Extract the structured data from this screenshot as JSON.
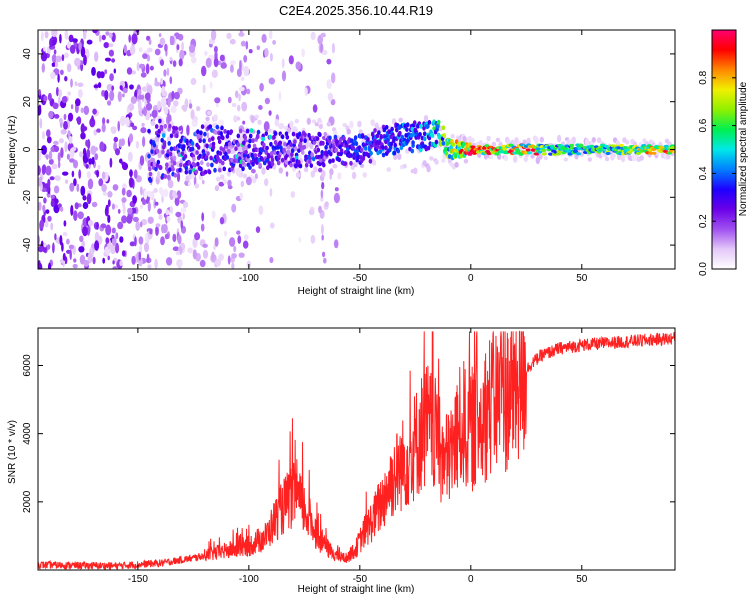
{
  "title": "C2E4.2025.356.10.44.R19",
  "chart_data": [
    {
      "type": "heatmap",
      "name": "spectrogram",
      "xlabel": "Height of straight line (km)",
      "ylabel": "Frequency (Hz)",
      "xlim": [
        -195,
        92
      ],
      "ylim": [
        -50,
        50
      ],
      "xticks": [
        -150,
        -100,
        -50,
        0,
        50
      ],
      "xtick_labels": [
        "-150",
        "-100",
        "-50",
        "0",
        "50"
      ],
      "yticks": [
        -40,
        -20,
        0,
        20,
        40
      ],
      "ytick_labels": [
        "-40",
        "-20",
        "0",
        "20",
        "40"
      ],
      "colorbar": {
        "label": "Normalized spectral amplitude",
        "range": [
          0,
          1
        ],
        "ticks": [
          0.0,
          0.2,
          0.4,
          0.6,
          0.8
        ],
        "tick_labels": [
          "0.0",
          "0.2",
          "0.4",
          "0.6",
          "0.8"
        ],
        "colormap": [
          "#ffffff",
          "#e4c8f8",
          "#a050f0",
          "#6a00e8",
          "#1e00ff",
          "#0080ff",
          "#00e8e8",
          "#00f050",
          "#90f000",
          "#f0f000",
          "#ff8800",
          "#ff0000",
          "#ff0070"
        ]
      },
      "description_points": [
        {
          "x": -190,
          "band_halfwidth_hz": 50,
          "amplitude": 0.15
        },
        {
          "x": -140,
          "band_halfwidth_hz": 12,
          "amplitude": 0.2
        },
        {
          "x": -100,
          "band_halfwidth_hz": 8,
          "amplitude": 0.25
        },
        {
          "x": -50,
          "band_halfwidth_hz": 6,
          "amplitude": 0.35
        },
        {
          "x": -20,
          "band_halfwidth_hz": 6,
          "amplitude": 0.45
        },
        {
          "x": 0,
          "band_halfwidth_hz": 2,
          "amplitude": 0.9
        },
        {
          "x": 50,
          "band_halfwidth_hz": 2,
          "amplitude": 0.55
        },
        {
          "x": 90,
          "band_halfwidth_hz": 1.5,
          "amplitude": 0.85
        }
      ]
    },
    {
      "type": "line",
      "name": "snr",
      "xlabel": "Height of straight line (km)",
      "ylabel": "SNR (10 * v/v)",
      "xlim": [
        -195,
        92
      ],
      "ylim": [
        0,
        7100
      ],
      "xticks": [
        -150,
        -100,
        -50,
        0,
        50
      ],
      "xtick_labels": [
        "-150",
        "-100",
        "-50",
        "0",
        "50"
      ],
      "yticks": [
        2000,
        4000,
        6000
      ],
      "ytick_labels": [
        "2000",
        "4000",
        "6000"
      ],
      "color": "#ff2020",
      "series": [
        {
          "name": "SNR",
          "x": [
            -195,
            -160,
            -140,
            -125,
            -115,
            -100,
            -92,
            -88,
            -84,
            -80,
            -76,
            -72,
            -68,
            -64,
            -60,
            -56,
            -52,
            -48,
            -44,
            -40,
            -36,
            -32,
            -28,
            -24,
            -20,
            -16,
            -12,
            -8,
            -4,
            0,
            4,
            8,
            12,
            16,
            20,
            24,
            28,
            32,
            40,
            50,
            60,
            70,
            80,
            92
          ],
          "y": [
            150,
            120,
            200,
            350,
            500,
            700,
            1000,
            1500,
            1900,
            2200,
            1900,
            1400,
            900,
            600,
            400,
            350,
            600,
            1100,
            1500,
            2000,
            2600,
            3000,
            3300,
            3800,
            4300,
            3900,
            3100,
            3600,
            4300,
            4100,
            4400,
            4800,
            5000,
            5100,
            5400,
            5800,
            6100,
            6300,
            6500,
            6600,
            6650,
            6700,
            6750,
            6800
          ]
        }
      ]
    }
  ]
}
